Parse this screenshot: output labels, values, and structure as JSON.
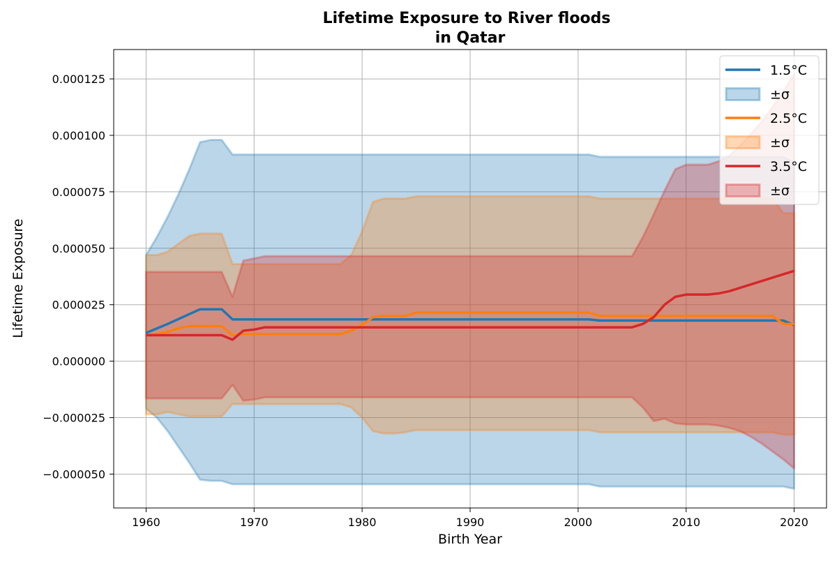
{
  "chart_data": {
    "type": "line",
    "title_lines": [
      "Lifetime Exposure to River floods",
      "in Qatar"
    ],
    "xlabel": "Birth Year",
    "ylabel": "Lifetime Exposure",
    "xlim": [
      1957,
      2023
    ],
    "ylim": [
      -6.5e-05,
      0.000138
    ],
    "x_ticks": [
      1960,
      1970,
      1980,
      1990,
      2000,
      2010,
      2020
    ],
    "x_tick_labels": [
      "1960",
      "1970",
      "1980",
      "1990",
      "2000",
      "2010",
      "2020"
    ],
    "y_ticks": [
      -5e-05,
      -2.5e-05,
      0,
      2.5e-05,
      5e-05,
      7.5e-05,
      0.0001,
      0.000125
    ],
    "y_tick_labels": [
      "−0.000050",
      "−0.000025",
      "0.000000",
      "0.000025",
      "0.000050",
      "0.000075",
      "0.000100",
      "0.000125"
    ],
    "grid": true,
    "legend_placement": "top-right",
    "series": [
      {
        "name": "1.5°C",
        "band_label": "±σ",
        "color": "#1f77b4",
        "mean": [
          [
            1960,
            1.25e-05
          ],
          [
            1962,
            1.65e-05
          ],
          [
            1965,
            2.3e-05
          ],
          [
            1967,
            2.3e-05
          ],
          [
            1968,
            1.85e-05
          ],
          [
            2001,
            1.85e-05
          ],
          [
            2002,
            1.8e-05
          ],
          [
            2019,
            1.8e-05
          ],
          [
            2020,
            1.6e-05
          ]
        ],
        "upper": [
          [
            1960,
            4.7e-05
          ],
          [
            1961,
            5.5e-05
          ],
          [
            1962,
            6.4e-05
          ],
          [
            1963,
            7.4e-05
          ],
          [
            1964,
            8.5e-05
          ],
          [
            1965,
            9.7e-05
          ],
          [
            1966,
            9.8e-05
          ],
          [
            1967,
            9.8e-05
          ],
          [
            1968,
            9.15e-05
          ],
          [
            2001,
            9.15e-05
          ],
          [
            2002,
            9.05e-05
          ],
          [
            2019,
            9.05e-05
          ],
          [
            2020,
            8.8e-05
          ]
        ],
        "lower": [
          [
            1960,
            -2.1e-05
          ],
          [
            1961,
            -2.5e-05
          ],
          [
            1962,
            -3.1e-05
          ],
          [
            1963,
            -3.8e-05
          ],
          [
            1964,
            -4.5e-05
          ],
          [
            1965,
            -5.25e-05
          ],
          [
            1966,
            -5.3e-05
          ],
          [
            1967,
            -5.3e-05
          ],
          [
            1968,
            -5.45e-05
          ],
          [
            2001,
            -5.45e-05
          ],
          [
            2002,
            -5.55e-05
          ],
          [
            2019,
            -5.55e-05
          ],
          [
            2020,
            -5.65e-05
          ]
        ]
      },
      {
        "name": "2.5°C",
        "band_label": "±σ",
        "color": "#ff7f0e",
        "mean": [
          [
            1960,
            1.15e-05
          ],
          [
            1961,
            1.2e-05
          ],
          [
            1962,
            1.3e-05
          ],
          [
            1963,
            1.45e-05
          ],
          [
            1964,
            1.55e-05
          ],
          [
            1967,
            1.55e-05
          ],
          [
            1968,
            1.15e-05
          ],
          [
            1969,
            1.2e-05
          ],
          [
            1978,
            1.2e-05
          ],
          [
            1979,
            1.35e-05
          ],
          [
            1980,
            1.6e-05
          ],
          [
            1981,
            1.95e-05
          ],
          [
            1982,
            2e-05
          ],
          [
            1984,
            2e-05
          ],
          [
            1985,
            2.15e-05
          ],
          [
            2001,
            2.15e-05
          ],
          [
            2002,
            2e-05
          ],
          [
            2018,
            2e-05
          ],
          [
            2019,
            1.65e-05
          ],
          [
            2020,
            1.65e-05
          ]
        ],
        "upper": [
          [
            1960,
            4.7e-05
          ],
          [
            1961,
            4.7e-05
          ],
          [
            1962,
            4.85e-05
          ],
          [
            1963,
            5.2e-05
          ],
          [
            1964,
            5.55e-05
          ],
          [
            1965,
            5.65e-05
          ],
          [
            1967,
            5.65e-05
          ],
          [
            1968,
            4.3e-05
          ],
          [
            1978,
            4.3e-05
          ],
          [
            1979,
            4.7e-05
          ],
          [
            1980,
            5.75e-05
          ],
          [
            1981,
            7.05e-05
          ],
          [
            1982,
            7.2e-05
          ],
          [
            1984,
            7.2e-05
          ],
          [
            1985,
            7.3e-05
          ],
          [
            2001,
            7.3e-05
          ],
          [
            2002,
            7.2e-05
          ],
          [
            2018,
            7.2e-05
          ],
          [
            2019,
            6.55e-05
          ],
          [
            2020,
            6.55e-05
          ]
        ],
        "lower": [
          [
            1960,
            -2.35e-05
          ],
          [
            1961,
            -2.35e-05
          ],
          [
            1962,
            -2.25e-05
          ],
          [
            1963,
            -2.35e-05
          ],
          [
            1964,
            -2.45e-05
          ],
          [
            1967,
            -2.45e-05
          ],
          [
            1968,
            -1.9e-05
          ],
          [
            1978,
            -1.9e-05
          ],
          [
            1979,
            -2.05e-05
          ],
          [
            1980,
            -2.5e-05
          ],
          [
            1981,
            -3.1e-05
          ],
          [
            1982,
            -3.2e-05
          ],
          [
            1983,
            -3.2e-05
          ],
          [
            1984,
            -3.15e-05
          ],
          [
            1985,
            -3.05e-05
          ],
          [
            2001,
            -3.05e-05
          ],
          [
            2002,
            -3.15e-05
          ],
          [
            2018,
            -3.15e-05
          ],
          [
            2019,
            -3.25e-05
          ],
          [
            2020,
            -3.25e-05
          ]
        ]
      },
      {
        "name": "3.5°C",
        "band_label": "±σ",
        "color": "#d62728",
        "mean": [
          [
            1960,
            1.15e-05
          ],
          [
            1967,
            1.15e-05
          ],
          [
            1968,
            9.5e-06
          ],
          [
            1969,
            1.35e-05
          ],
          [
            1970,
            1.4e-05
          ],
          [
            1971,
            1.5e-05
          ],
          [
            2005,
            1.5e-05
          ],
          [
            2006,
            1.65e-05
          ],
          [
            2007,
            1.95e-05
          ],
          [
            2008,
            2.5e-05
          ],
          [
            2009,
            2.85e-05
          ],
          [
            2010,
            2.95e-05
          ],
          [
            2012,
            2.95e-05
          ],
          [
            2013,
            3e-05
          ],
          [
            2014,
            3.1e-05
          ],
          [
            2020,
            4e-05
          ]
        ],
        "upper": [
          [
            1960,
            3.95e-05
          ],
          [
            1967,
            3.95e-05
          ],
          [
            1968,
            2.85e-05
          ],
          [
            1969,
            4.45e-05
          ],
          [
            1970,
            4.55e-05
          ],
          [
            1971,
            4.65e-05
          ],
          [
            2005,
            4.65e-05
          ],
          [
            2006,
            5.5e-05
          ],
          [
            2007,
            6.5e-05
          ],
          [
            2008,
            7.55e-05
          ],
          [
            2009,
            8.5e-05
          ],
          [
            2010,
            8.7e-05
          ],
          [
            2012,
            8.7e-05
          ],
          [
            2013,
            8.85e-05
          ],
          [
            2014,
            9.1e-05
          ],
          [
            2015,
            9.55e-05
          ],
          [
            2016,
            0.0001005
          ],
          [
            2017,
            0.000106
          ],
          [
            2018,
            0.0001125
          ],
          [
            2019,
            0.0001195
          ],
          [
            2020,
            0.000127
          ]
        ],
        "lower": [
          [
            1960,
            -1.65e-05
          ],
          [
            1967,
            -1.65e-05
          ],
          [
            1968,
            -1.05e-05
          ],
          [
            1969,
            -1.75e-05
          ],
          [
            1970,
            -1.7e-05
          ],
          [
            1971,
            -1.6e-05
          ],
          [
            2005,
            -1.6e-05
          ],
          [
            2006,
            -2.05e-05
          ],
          [
            2007,
            -2.65e-05
          ],
          [
            2008,
            -2.55e-05
          ],
          [
            2009,
            -2.75e-05
          ],
          [
            2010,
            -2.8e-05
          ],
          [
            2012,
            -2.8e-05
          ],
          [
            2013,
            -2.85e-05
          ],
          [
            2014,
            -2.95e-05
          ],
          [
            2015,
            -3.1e-05
          ],
          [
            2016,
            -3.35e-05
          ],
          [
            2017,
            -3.65e-05
          ],
          [
            2018,
            -4e-05
          ],
          [
            2019,
            -4.35e-05
          ],
          [
            2020,
            -4.75e-05
          ]
        ]
      }
    ]
  }
}
